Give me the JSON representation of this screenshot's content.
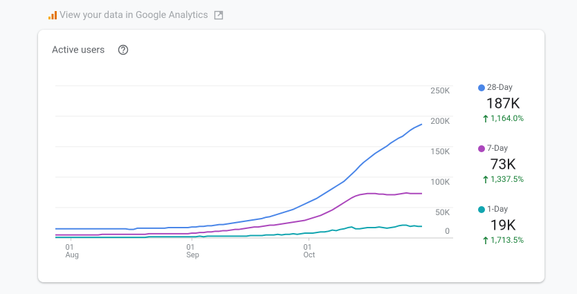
{
  "header": {
    "title": "View your data in Google Analytics"
  },
  "chart_data": {
    "type": "line",
    "title": "Active users",
    "categories": [
      "28 Jul",
      "29 Jul",
      "30 Jul",
      "31 Jul",
      "01 Aug",
      "02 Aug",
      "03 Aug",
      "04 Aug",
      "05 Aug",
      "06 Aug",
      "07 Aug",
      "08 Aug",
      "09 Aug",
      "10 Aug",
      "11 Aug",
      "12 Aug",
      "13 Aug",
      "14 Aug",
      "15 Aug",
      "16 Aug",
      "17 Aug",
      "18 Aug",
      "19 Aug",
      "20 Aug",
      "21 Aug",
      "22 Aug",
      "23 Aug",
      "24 Aug",
      "25 Aug",
      "26 Aug",
      "27 Aug",
      "28 Aug",
      "29 Aug",
      "30 Aug",
      "31 Aug",
      "01 Sep",
      "02 Sep",
      "03 Sep",
      "04 Sep",
      "05 Sep",
      "06 Sep",
      "07 Sep",
      "08 Sep",
      "09 Sep",
      "10 Sep",
      "11 Sep",
      "12 Sep",
      "13 Sep",
      "14 Sep",
      "15 Sep",
      "16 Sep",
      "17 Sep",
      "18 Sep",
      "19 Sep",
      "20 Sep",
      "21 Sep",
      "22 Sep",
      "23 Sep",
      "24 Sep",
      "25 Sep",
      "26 Sep",
      "27 Sep",
      "28 Sep",
      "29 Sep",
      "30 Sep",
      "01 Oct",
      "02 Oct",
      "03 Oct",
      "04 Oct",
      "05 Oct",
      "06 Oct",
      "07 Oct",
      "08 Oct",
      "09 Oct",
      "10 Oct",
      "11 Oct",
      "12 Oct",
      "13 Oct",
      "14 Oct",
      "15 Oct",
      "16 Oct",
      "17 Oct",
      "18 Oct",
      "19 Oct",
      "20 Oct",
      "21 Oct",
      "22 Oct",
      "23 Oct",
      "24 Oct",
      "25 Oct",
      "26 Oct",
      "27 Oct",
      "28 Oct",
      "29 Oct",
      "30 Oct"
    ],
    "xticks": [
      {
        "value": "01 Aug",
        "label": [
          "01",
          "Aug"
        ]
      },
      {
        "value": "01 Sep",
        "label": [
          "01",
          "Sep"
        ]
      },
      {
        "value": "01 Oct",
        "label": [
          "01",
          "Oct"
        ]
      }
    ],
    "ylim": [
      0,
      250000
    ],
    "yticks": [
      0,
      {
        "value": 50000,
        "label": "50K"
      },
      {
        "value": 100000,
        "label": "100K"
      },
      {
        "value": 150000,
        "label": "150K"
      },
      {
        "value": 200000,
        "label": "200K"
      },
      {
        "value": 250000,
        "label": "250K"
      }
    ],
    "grid": true,
    "legend": "right",
    "series": [
      {
        "name": "28-Day",
        "color": "#4a86e8",
        "latest": 187000,
        "latest_label": "187K",
        "change": 1164.0,
        "change_label": "1,164.0%",
        "values": [
          15000,
          15000,
          15000,
          15000,
          15000,
          15000,
          15000,
          15000,
          15000,
          15000,
          15000,
          15000,
          15000,
          15000,
          15000,
          15000,
          15000,
          15000,
          15000,
          14000,
          14000,
          16000,
          16000,
          16000,
          16000,
          16000,
          16000,
          16000,
          16000,
          17000,
          17000,
          17000,
          17000,
          17000,
          17000,
          18000,
          18000,
          19000,
          19000,
          20000,
          20000,
          21000,
          22000,
          22000,
          23000,
          24000,
          25000,
          26000,
          27000,
          28000,
          29000,
          30000,
          31000,
          32000,
          34000,
          35000,
          37000,
          39000,
          41000,
          43000,
          45000,
          47000,
          50000,
          53000,
          56000,
          59000,
          62000,
          65000,
          69000,
          73000,
          77000,
          81000,
          85000,
          89000,
          93000,
          99000,
          105000,
          111000,
          118000,
          124000,
          129000,
          134000,
          139000,
          143000,
          147000,
          151000,
          156000,
          160000,
          164000,
          167000,
          172000,
          177000,
          181000,
          184000,
          187000
        ]
      },
      {
        "name": "7-Day",
        "color": "#ab47bc",
        "latest": 73000,
        "latest_label": "73K",
        "change": 1337.5,
        "change_label": "1,337.5%",
        "values": [
          5000,
          5000,
          5000,
          5000,
          5000,
          5000,
          5000,
          5000,
          5000,
          5000,
          5000,
          5000,
          6000,
          6000,
          6000,
          6000,
          6000,
          6000,
          6000,
          6000,
          6000,
          6000,
          6000,
          6000,
          7000,
          7000,
          7000,
          7000,
          7000,
          7000,
          7000,
          7000,
          7000,
          7000,
          7000,
          8000,
          8000,
          9000,
          9000,
          10000,
          10000,
          11000,
          11000,
          12000,
          12000,
          13000,
          14000,
          14000,
          15000,
          16000,
          17000,
          18000,
          18000,
          19000,
          20000,
          21000,
          21000,
          22000,
          23000,
          24000,
          25000,
          26000,
          27000,
          28000,
          29000,
          31000,
          33000,
          35000,
          37000,
          40000,
          43000,
          46000,
          50000,
          54000,
          58000,
          62000,
          66000,
          69000,
          71000,
          72000,
          73000,
          73000,
          73000,
          72000,
          72000,
          71000,
          71000,
          71000,
          72000,
          73000,
          74000,
          73000,
          73000,
          73000,
          73000
        ]
      },
      {
        "name": "1-Day",
        "color": "#12a5b0",
        "latest": 19000,
        "latest_label": "19K",
        "change": 1713.5,
        "change_label": "1,713.5%",
        "values": [
          1000,
          1000,
          1000,
          1000,
          1000,
          1000,
          1000,
          1000,
          1000,
          1000,
          1000,
          1000,
          1000,
          1000,
          1000,
          1000,
          1000,
          1000,
          1000,
          1000,
          1000,
          1000,
          1000,
          1000,
          2000,
          2000,
          2000,
          2000,
          2000,
          2000,
          2000,
          2000,
          2000,
          2000,
          2000,
          2000,
          2000,
          3000,
          2000,
          3000,
          3000,
          3000,
          3000,
          3000,
          3000,
          3000,
          3000,
          3000,
          3000,
          3000,
          4000,
          4000,
          4000,
          4000,
          5000,
          5000,
          5000,
          6000,
          5000,
          6000,
          6000,
          7000,
          6000,
          7000,
          8000,
          8000,
          8000,
          9000,
          10000,
          10000,
          11000,
          13000,
          12000,
          14000,
          15000,
          17000,
          18000,
          15000,
          15000,
          16000,
          17000,
          17000,
          17000,
          18000,
          17000,
          16000,
          17000,
          18000,
          20000,
          21000,
          21000,
          19000,
          20000,
          19000,
          19000
        ]
      }
    ]
  }
}
